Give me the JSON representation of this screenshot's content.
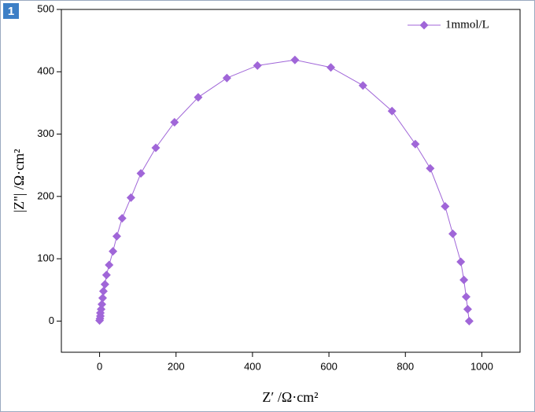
{
  "badge": "1",
  "chart_data": {
    "type": "line",
    "xlabel": "Z′ /Ω·cm²",
    "ylabel": "|Z''| /Ω·cm²",
    "x": [
      0,
      1,
      2,
      2,
      4,
      6,
      8,
      10,
      14,
      18,
      25,
      35,
      45,
      59,
      82,
      108,
      147,
      196,
      258,
      333,
      413,
      511,
      605,
      689,
      765,
      826,
      865,
      904,
      924,
      945,
      953,
      959,
      963,
      967
    ],
    "series": [
      {
        "name": "1mmol/L",
        "color": "#a066d8",
        "values": [
          1,
          4,
          8,
          13,
          19,
          27,
          37,
          48,
          59,
          74,
          90,
          112,
          136,
          165,
          198,
          237,
          278,
          319,
          359,
          390,
          410,
          419,
          407,
          378,
          337,
          284,
          245,
          184,
          140,
          95,
          66,
          39,
          19,
          0
        ]
      }
    ],
    "xlim": [
      -100,
      1100
    ],
    "xticks": [
      0,
      200,
      400,
      600,
      800,
      1000
    ],
    "ylim": [
      -50,
      500
    ],
    "yticks": [
      0,
      100,
      200,
      300,
      400,
      500
    ],
    "legend": "upper right"
  }
}
